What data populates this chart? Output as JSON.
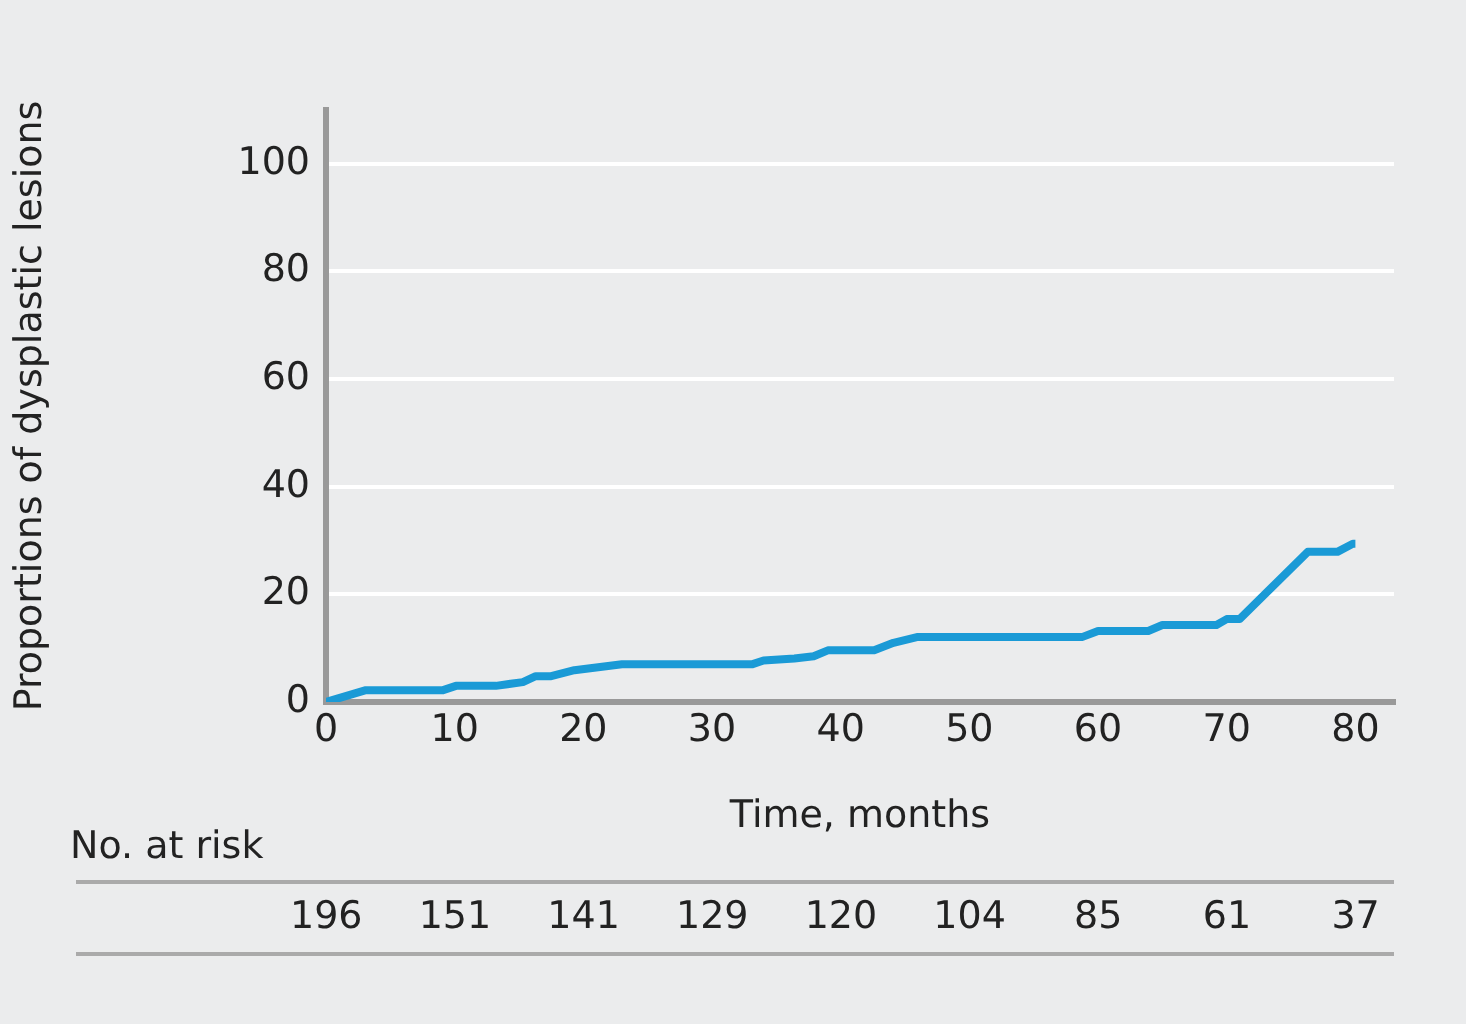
{
  "chart_data": {
    "type": "step",
    "xlabel": "Time, months",
    "ylabel": "Proportions of dysplastic lesions",
    "x": [
      0,
      3.1,
      9.1,
      10.1,
      13.2,
      15.3,
      16.3,
      17.5,
      19.3,
      23,
      33.1,
      34,
      36.4,
      37.9,
      39,
      42.6,
      44.1,
      46,
      58.8,
      60,
      63.9,
      65,
      69.2,
      70,
      71,
      73.5,
      76.3,
      78.6,
      79.8,
      80
    ],
    "series": [
      {
        "color": "#1a9ad6",
        "values": [
          0,
          2.2,
          2.2,
          3,
          3,
          3.7,
          4.8,
          4.8,
          5.9,
          7,
          7,
          7.7,
          8.1,
          8.5,
          9.6,
          9.6,
          11,
          12.1,
          12.1,
          13.2,
          13.2,
          14.3,
          14.3,
          15.4,
          15.4,
          21.3,
          27.9,
          27.9,
          29.4,
          29.4
        ]
      }
    ],
    "xlim": [
      0,
      83
    ],
    "xticks": [
      0,
      10,
      20,
      30,
      40,
      50,
      60,
      70,
      80
    ],
    "ylim": [
      0,
      110
    ],
    "yticks": [
      0,
      20,
      40,
      60,
      80,
      100
    ],
    "grid": "y",
    "legend": false,
    "marker": "none",
    "line_style": "solid",
    "annotations": [
      "No. at risk",
      "196",
      "151",
      "141",
      "129",
      "120",
      "104",
      "85",
      "61",
      "37"
    ]
  }
}
